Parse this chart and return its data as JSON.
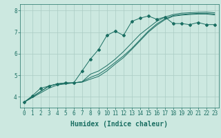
{
  "xlabel": "Humidex (Indice chaleur)",
  "xlim": [
    -0.5,
    23.5
  ],
  "ylim": [
    3.5,
    8.3
  ],
  "background_color": "#cce8e0",
  "line_color": "#1a6e62",
  "grid_color": "#aaccc4",
  "lines": [
    {
      "x": [
        0,
        1,
        2,
        3,
        4,
        5,
        6,
        7,
        8,
        9,
        10,
        11,
        12,
        13,
        14,
        15,
        16,
        17,
        18,
        19,
        20,
        21,
        22,
        23
      ],
      "y": [
        3.75,
        4.05,
        4.4,
        4.5,
        4.6,
        4.65,
        4.65,
        5.2,
        5.75,
        6.2,
        6.85,
        7.05,
        6.85,
        7.5,
        7.65,
        7.75,
        7.6,
        7.7,
        7.4,
        7.4,
        7.35,
        7.45,
        7.35,
        7.35
      ],
      "marker": true
    },
    {
      "x": [
        0,
        3,
        4,
        5,
        6,
        7,
        8,
        9,
        10,
        11,
        12,
        13,
        14,
        15,
        16,
        17,
        18,
        19,
        20,
        21,
        22,
        23
      ],
      "y": [
        3.75,
        4.5,
        4.6,
        4.65,
        4.65,
        4.7,
        5.05,
        5.2,
        5.45,
        5.75,
        6.1,
        6.5,
        6.9,
        7.2,
        7.5,
        7.7,
        7.82,
        7.88,
        7.9,
        7.92,
        7.93,
        7.9
      ],
      "marker": false
    },
    {
      "x": [
        0,
        3,
        4,
        5,
        6,
        7,
        8,
        9,
        10,
        11,
        12,
        13,
        14,
        15,
        16,
        17,
        18,
        19,
        20,
        21,
        22,
        23
      ],
      "y": [
        3.75,
        4.5,
        4.6,
        4.62,
        4.65,
        4.7,
        4.9,
        5.05,
        5.3,
        5.6,
        5.9,
        6.25,
        6.65,
        7.05,
        7.38,
        7.62,
        7.77,
        7.82,
        7.85,
        7.87,
        7.87,
        7.84
      ],
      "marker": false
    },
    {
      "x": [
        0,
        3,
        4,
        5,
        6,
        7,
        8,
        9,
        10,
        11,
        12,
        13,
        14,
        15,
        16,
        17,
        18,
        19,
        20,
        21,
        22,
        23
      ],
      "y": [
        3.75,
        4.4,
        4.55,
        4.6,
        4.65,
        4.68,
        4.82,
        4.95,
        5.2,
        5.52,
        5.82,
        6.2,
        6.6,
        7.0,
        7.32,
        7.58,
        7.74,
        7.79,
        7.82,
        7.84,
        7.84,
        7.8
      ],
      "marker": false
    }
  ],
  "yticks": [
    4,
    5,
    6,
    7,
    8
  ],
  "xticks": [
    0,
    1,
    2,
    3,
    4,
    5,
    6,
    7,
    8,
    9,
    10,
    11,
    12,
    13,
    14,
    15,
    16,
    17,
    18,
    19,
    20,
    21,
    22,
    23
  ],
  "tick_fontsize": 5.5,
  "label_fontsize": 7.0
}
